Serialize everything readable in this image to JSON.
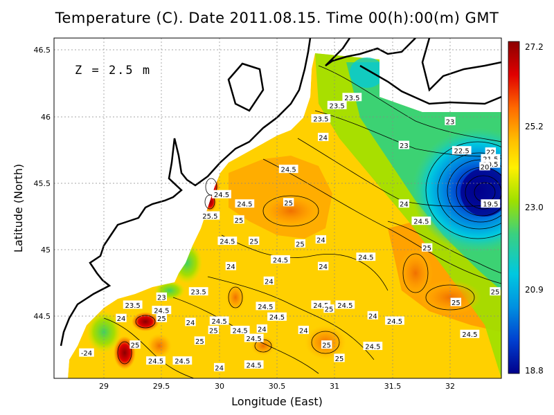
{
  "title": "Temperature (C). Date 2011.08.15. Time 00(h):00(m) GMT",
  "depth_label": "Z = 2.5 m",
  "axes": {
    "xlabel": "Longitude (East)",
    "ylabel": "Latitude (North)",
    "xticks": [
      "29",
      "29.5",
      "30",
      "30.5",
      "31",
      "31.5",
      "32"
    ],
    "yticks": [
      "46.5",
      "46",
      "45.5",
      "45",
      "44.5"
    ]
  },
  "colorbar": {
    "ticks": [
      "27.2",
      "25.2",
      "23.0",
      "20.9",
      "18.8"
    ],
    "colors": [
      "#8b0000",
      "#e00000",
      "#ff6a00",
      "#ffc000",
      "#fff000",
      "#9ee000",
      "#3ad080",
      "#00c8e0",
      "#0090e0",
      "#0040d0",
      "#00008b"
    ]
  },
  "contour_labels": [
    {
      "text": "23.5",
      "lon": 31.15,
      "lat": 46.14
    },
    {
      "text": "23.5",
      "lon": 31.02,
      "lat": 46.08
    },
    {
      "text": "23.5",
      "lon": 30.88,
      "lat": 45.98
    },
    {
      "text": "23",
      "lon": 32.0,
      "lat": 45.96
    },
    {
      "text": "24",
      "lon": 30.9,
      "lat": 45.84
    },
    {
      "text": "23",
      "lon": 31.6,
      "lat": 45.78
    },
    {
      "text": "22.5",
      "lon": 32.1,
      "lat": 45.74
    },
    {
      "text": "22",
      "lon": 32.35,
      "lat": 45.73
    },
    {
      "text": "21.5",
      "lon": 32.35,
      "lat": 45.68
    },
    {
      "text": "20.5",
      "lon": 32.35,
      "lat": 45.64
    },
    {
      "text": "20",
      "lon": 32.3,
      "lat": 45.62
    },
    {
      "text": "24.5",
      "lon": 30.6,
      "lat": 45.6
    },
    {
      "text": "24.5",
      "lon": 30.02,
      "lat": 45.41
    },
    {
      "text": "24.5",
      "lon": 30.22,
      "lat": 45.34
    },
    {
      "text": "25",
      "lon": 30.6,
      "lat": 45.35
    },
    {
      "text": "24",
      "lon": 31.6,
      "lat": 45.34
    },
    {
      "text": "19.5",
      "lon": 32.35,
      "lat": 45.34
    },
    {
      "text": "25.5",
      "lon": 29.92,
      "lat": 45.25
    },
    {
      "text": "25",
      "lon": 30.17,
      "lat": 45.22
    },
    {
      "text": "24.5",
      "lon": 31.75,
      "lat": 45.21
    },
    {
      "text": "24.5",
      "lon": 30.07,
      "lat": 45.06
    },
    {
      "text": "25",
      "lon": 30.3,
      "lat": 45.06
    },
    {
      "text": "25",
      "lon": 30.7,
      "lat": 45.04
    },
    {
      "text": "24",
      "lon": 30.88,
      "lat": 45.07
    },
    {
      "text": "25",
      "lon": 31.8,
      "lat": 45.01
    },
    {
      "text": "24.5",
      "lon": 31.27,
      "lat": 44.94
    },
    {
      "text": "24.5",
      "lon": 30.53,
      "lat": 44.92
    },
    {
      "text": "24",
      "lon": 30.1,
      "lat": 44.87
    },
    {
      "text": "24",
      "lon": 30.9,
      "lat": 44.87
    },
    {
      "text": "24",
      "lon": 30.43,
      "lat": 44.76
    },
    {
      "text": "23",
      "lon": 29.5,
      "lat": 44.64
    },
    {
      "text": "23.5",
      "lon": 29.82,
      "lat": 44.68
    },
    {
      "text": "23.5",
      "lon": 29.25,
      "lat": 44.58
    },
    {
      "text": "24.5",
      "lon": 29.5,
      "lat": 44.54
    },
    {
      "text": "24.5",
      "lon": 30.4,
      "lat": 44.57
    },
    {
      "text": "24.5",
      "lon": 30.88,
      "lat": 44.58
    },
    {
      "text": "25",
      "lon": 30.95,
      "lat": 44.55
    },
    {
      "text": "24.5",
      "lon": 31.09,
      "lat": 44.58
    },
    {
      "text": "25",
      "lon": 32.05,
      "lat": 44.6
    },
    {
      "text": "25",
      "lon": 32.39,
      "lat": 44.68
    },
    {
      "text": "24",
      "lon": 29.15,
      "lat": 44.48
    },
    {
      "text": "25",
      "lon": 29.5,
      "lat": 44.48
    },
    {
      "text": "24",
      "lon": 29.75,
      "lat": 44.45
    },
    {
      "text": "24.5",
      "lon": 30.0,
      "lat": 44.46
    },
    {
      "text": "24.5",
      "lon": 30.5,
      "lat": 44.49
    },
    {
      "text": "24",
      "lon": 31.33,
      "lat": 44.5
    },
    {
      "text": "24.5",
      "lon": 31.52,
      "lat": 44.46
    },
    {
      "text": "25",
      "lon": 29.95,
      "lat": 44.39
    },
    {
      "text": "24.5",
      "lon": 30.18,
      "lat": 44.39
    },
    {
      "text": "24",
      "lon": 30.37,
      "lat": 44.4
    },
    {
      "text": "24",
      "lon": 30.73,
      "lat": 44.39
    },
    {
      "text": "24.5",
      "lon": 30.3,
      "lat": 44.33
    },
    {
      "text": "25",
      "lon": 29.83,
      "lat": 44.31
    },
    {
      "text": "25",
      "lon": 29.27,
      "lat": 44.28
    },
    {
      "text": "25",
      "lon": 30.93,
      "lat": 44.28
    },
    {
      "text": "24.5",
      "lon": 31.33,
      "lat": 44.27
    },
    {
      "text": "24.5",
      "lon": 32.17,
      "lat": 44.36
    },
    {
      "text": "-24",
      "lon": 28.85,
      "lat": 44.22
    },
    {
      "text": "24.5",
      "lon": 29.45,
      "lat": 44.16
    },
    {
      "text": "24.5",
      "lon": 29.68,
      "lat": 44.16
    },
    {
      "text": "25",
      "lon": 31.04,
      "lat": 44.18
    },
    {
      "text": "24",
      "lon": 30.0,
      "lat": 44.11
    },
    {
      "text": "24.5",
      "lon": 30.3,
      "lat": 44.13
    }
  ]
}
